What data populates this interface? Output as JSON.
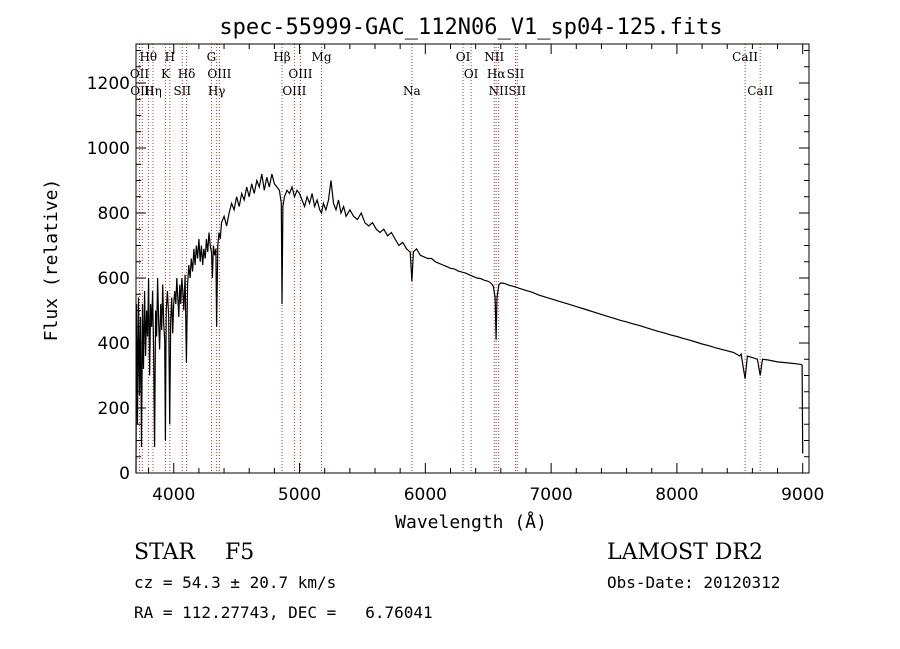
{
  "chart_data": {
    "type": "line",
    "title": "spec-55999-GAC_112N06_V1_sp04-125.fits",
    "xlabel": "Wavelength (Å)",
    "ylabel": "Flux (relative)",
    "xlim": [
      3700,
      9050
    ],
    "ylim": [
      0,
      1320
    ],
    "xticks": [
      4000,
      5000,
      6000,
      7000,
      8000,
      9000
    ],
    "yticks": [
      0,
      200,
      400,
      600,
      800,
      1000,
      1200
    ],
    "series": [
      {
        "values": [
          [
            3700,
            0
          ],
          [
            3705,
            520
          ],
          [
            3712,
            150
          ],
          [
            3720,
            540
          ],
          [
            3728,
            240
          ],
          [
            3736,
            480
          ],
          [
            3744,
            80
          ],
          [
            3752,
            520
          ],
          [
            3760,
            320
          ],
          [
            3768,
            560
          ],
          [
            3776,
            360
          ],
          [
            3784,
            500
          ],
          [
            3792,
            420
          ],
          [
            3800,
            600
          ],
          [
            3808,
            300
          ],
          [
            3816,
            520
          ],
          [
            3824,
            450
          ],
          [
            3832,
            560
          ],
          [
            3840,
            380
          ],
          [
            3848,
            80
          ],
          [
            3856,
            500
          ],
          [
            3864,
            420
          ],
          [
            3872,
            600
          ],
          [
            3880,
            470
          ],
          [
            3888,
            380
          ],
          [
            3896,
            520
          ],
          [
            3904,
            440
          ],
          [
            3912,
            580
          ],
          [
            3920,
            460
          ],
          [
            3928,
            410
          ],
          [
            3934,
            100
          ],
          [
            3940,
            500
          ],
          [
            3950,
            560
          ],
          [
            3960,
            480
          ],
          [
            3968,
            150
          ],
          [
            3976,
            470
          ],
          [
            3984,
            540
          ],
          [
            3992,
            430
          ],
          [
            4000,
            520
          ],
          [
            4008,
            560
          ],
          [
            4016,
            520
          ],
          [
            4024,
            600
          ],
          [
            4032,
            540
          ],
          [
            4040,
            480
          ],
          [
            4048,
            580
          ],
          [
            4056,
            520
          ],
          [
            4064,
            600
          ],
          [
            4072,
            560
          ],
          [
            4080,
            500
          ],
          [
            4090,
            610
          ],
          [
            4101,
            340
          ],
          [
            4110,
            580
          ],
          [
            4120,
            640
          ],
          [
            4130,
            600
          ],
          [
            4140,
            660
          ],
          [
            4150,
            620
          ],
          [
            4160,
            690
          ],
          [
            4170,
            640
          ],
          [
            4180,
            700
          ],
          [
            4190,
            660
          ],
          [
            4200,
            720
          ],
          [
            4210,
            650
          ],
          [
            4220,
            700
          ],
          [
            4230,
            640
          ],
          [
            4240,
            690
          ],
          [
            4250,
            660
          ],
          [
            4260,
            720
          ],
          [
            4270,
            680
          ],
          [
            4280,
            740
          ],
          [
            4290,
            700
          ],
          [
            4300,
            680
          ],
          [
            4307,
            600
          ],
          [
            4315,
            700
          ],
          [
            4325,
            670
          ],
          [
            4335,
            690
          ],
          [
            4341,
            450
          ],
          [
            4350,
            700
          ],
          [
            4360,
            740
          ],
          [
            4370,
            720
          ],
          [
            4380,
            770
          ],
          [
            4400,
            790
          ],
          [
            4420,
            760
          ],
          [
            4440,
            800
          ],
          [
            4460,
            830
          ],
          [
            4480,
            810
          ],
          [
            4500,
            850
          ],
          [
            4520,
            820
          ],
          [
            4540,
            860
          ],
          [
            4560,
            840
          ],
          [
            4580,
            880
          ],
          [
            4600,
            850
          ],
          [
            4620,
            890
          ],
          [
            4640,
            860
          ],
          [
            4660,
            900
          ],
          [
            4680,
            880
          ],
          [
            4700,
            920
          ],
          [
            4720,
            870
          ],
          [
            4740,
            910
          ],
          [
            4760,
            880
          ],
          [
            4780,
            920
          ],
          [
            4800,
            890
          ],
          [
            4820,
            880
          ],
          [
            4840,
            870
          ],
          [
            4855,
            830
          ],
          [
            4861,
            520
          ],
          [
            4868,
            820
          ],
          [
            4880,
            850
          ],
          [
            4900,
            870
          ],
          [
            4920,
            860
          ],
          [
            4940,
            880
          ],
          [
            4960,
            850
          ],
          [
            4980,
            870
          ],
          [
            5000,
            860
          ],
          [
            5020,
            840
          ],
          [
            5040,
            820
          ],
          [
            5060,
            850
          ],
          [
            5080,
            830
          ],
          [
            5100,
            860
          ],
          [
            5120,
            820
          ],
          [
            5140,
            840
          ],
          [
            5160,
            810
          ],
          [
            5175,
            800
          ],
          [
            5190,
            830
          ],
          [
            5210,
            810
          ],
          [
            5230,
            840
          ],
          [
            5250,
            900
          ],
          [
            5270,
            830
          ],
          [
            5290,
            810
          ],
          [
            5310,
            840
          ],
          [
            5330,
            800
          ],
          [
            5350,
            820
          ],
          [
            5370,
            790
          ],
          [
            5400,
            810
          ],
          [
            5430,
            790
          ],
          [
            5460,
            780
          ],
          [
            5490,
            800
          ],
          [
            5520,
            770
          ],
          [
            5550,
            760
          ],
          [
            5580,
            770
          ],
          [
            5610,
            750
          ],
          [
            5640,
            740
          ],
          [
            5670,
            750
          ],
          [
            5700,
            730
          ],
          [
            5730,
            740
          ],
          [
            5760,
            720
          ],
          [
            5790,
            700
          ],
          [
            5820,
            710
          ],
          [
            5850,
            690
          ],
          [
            5880,
            680
          ],
          [
            5893,
            590
          ],
          [
            5905,
            680
          ],
          [
            5930,
            690
          ],
          [
            5960,
            670
          ],
          [
            5990,
            665
          ],
          [
            6020,
            660
          ],
          [
            6050,
            660
          ],
          [
            6080,
            650
          ],
          [
            6110,
            645
          ],
          [
            6140,
            640
          ],
          [
            6170,
            635
          ],
          [
            6200,
            630
          ],
          [
            6230,
            628
          ],
          [
            6260,
            622
          ],
          [
            6290,
            618
          ],
          [
            6320,
            615
          ],
          [
            6350,
            610
          ],
          [
            6380,
            605
          ],
          [
            6410,
            600
          ],
          [
            6440,
            598
          ],
          [
            6470,
            593
          ],
          [
            6500,
            590
          ],
          [
            6520,
            585
          ],
          [
            6540,
            575
          ],
          [
            6555,
            540
          ],
          [
            6563,
            410
          ],
          [
            6570,
            540
          ],
          [
            6585,
            580
          ],
          [
            6600,
            585
          ],
          [
            6630,
            583
          ],
          [
            6660,
            578
          ],
          [
            6690,
            575
          ],
          [
            6720,
            572
          ],
          [
            6750,
            568
          ],
          [
            6800,
            562
          ],
          [
            6850,
            556
          ],
          [
            6900,
            548
          ],
          [
            6950,
            542
          ],
          [
            7000,
            536
          ],
          [
            7050,
            530
          ],
          [
            7100,
            524
          ],
          [
            7150,
            518
          ],
          [
            7200,
            512
          ],
          [
            7250,
            506
          ],
          [
            7300,
            500
          ],
          [
            7350,
            494
          ],
          [
            7400,
            488
          ],
          [
            7450,
            482
          ],
          [
            7500,
            476
          ],
          [
            7550,
            470
          ],
          [
            7600,
            465
          ],
          [
            7650,
            459
          ],
          [
            7700,
            454
          ],
          [
            7750,
            448
          ],
          [
            7800,
            442
          ],
          [
            7850,
            436
          ],
          [
            7900,
            431
          ],
          [
            7950,
            425
          ],
          [
            8000,
            420
          ],
          [
            8050,
            414
          ],
          [
            8100,
            409
          ],
          [
            8150,
            403
          ],
          [
            8200,
            397
          ],
          [
            8250,
            392
          ],
          [
            8300,
            386
          ],
          [
            8350,
            381
          ],
          [
            8400,
            376
          ],
          [
            8450,
            371
          ],
          [
            8498,
            360
          ],
          [
            8510,
            366
          ],
          [
            8542,
            290
          ],
          [
            8560,
            360
          ],
          [
            8600,
            355
          ],
          [
            8640,
            350
          ],
          [
            8662,
            300
          ],
          [
            8680,
            350
          ],
          [
            8720,
            348
          ],
          [
            8760,
            345
          ],
          [
            8800,
            342
          ],
          [
            8850,
            340
          ],
          [
            8900,
            338
          ],
          [
            8950,
            336
          ],
          [
            8985,
            334
          ],
          [
            8995,
            332
          ],
          [
            9000,
            60
          ]
        ]
      }
    ],
    "lines": [
      {
        "x": 3728,
        "label": "OII",
        "row": 2
      },
      {
        "x": 3750,
        "label": "OIII",
        "row": 3
      },
      {
        "x": 3798,
        "label": "Hθ",
        "row": 1
      },
      {
        "x": 3835,
        "label": "Hη",
        "row": 3
      },
      {
        "x": 3934,
        "label": "K",
        "row": 2
      },
      {
        "x": 3969,
        "label": "H",
        "row": 1
      },
      {
        "x": 4068,
        "label": "SII",
        "row": 3
      },
      {
        "x": 4102,
        "label": "Hδ",
        "row": 2
      },
      {
        "x": 4300,
        "label": "G",
        "row": 1
      },
      {
        "x": 4341,
        "label": "Hγ",
        "row": 3
      },
      {
        "x": 4363,
        "label": "OIII",
        "row": 2
      },
      {
        "x": 4861,
        "label": "Hβ",
        "row": 1
      },
      {
        "x": 4959,
        "label": "OIII",
        "row": 3
      },
      {
        "x": 5007,
        "label": "OIII",
        "row": 2
      },
      {
        "x": 5175,
        "label": "Mg",
        "row": 1
      },
      {
        "x": 5893,
        "label": "Na",
        "row": 3
      },
      {
        "x": 6300,
        "label": "OI",
        "row": 1
      },
      {
        "x": 6364,
        "label": "OI",
        "row": 2
      },
      {
        "x": 6548,
        "label": "NII",
        "row": 1
      },
      {
        "x": 6563,
        "label": "Hα",
        "row": 2
      },
      {
        "x": 6583,
        "label": "NII",
        "row": 3
      },
      {
        "x": 6717,
        "label": "SII",
        "row": 2
      },
      {
        "x": 6731,
        "label": "SII",
        "row": 3
      },
      {
        "x": 8542,
        "label": "CaII",
        "row": 1
      },
      {
        "x": 8662,
        "label": "CaII",
        "row": 3
      }
    ],
    "colors": {
      "spectrum": "#000000",
      "lines": "#c0392b",
      "axes": "#000000"
    },
    "grid": false
  },
  "info": {
    "class": "STAR",
    "subclass": "F5",
    "redshift": "cz = 54.3 ± 20.7 km/s",
    "coords": "RA = 112.27743, DEC =   6.76041",
    "survey": "LAMOST DR2",
    "obsdate": "Obs-Date: 20120312"
  }
}
